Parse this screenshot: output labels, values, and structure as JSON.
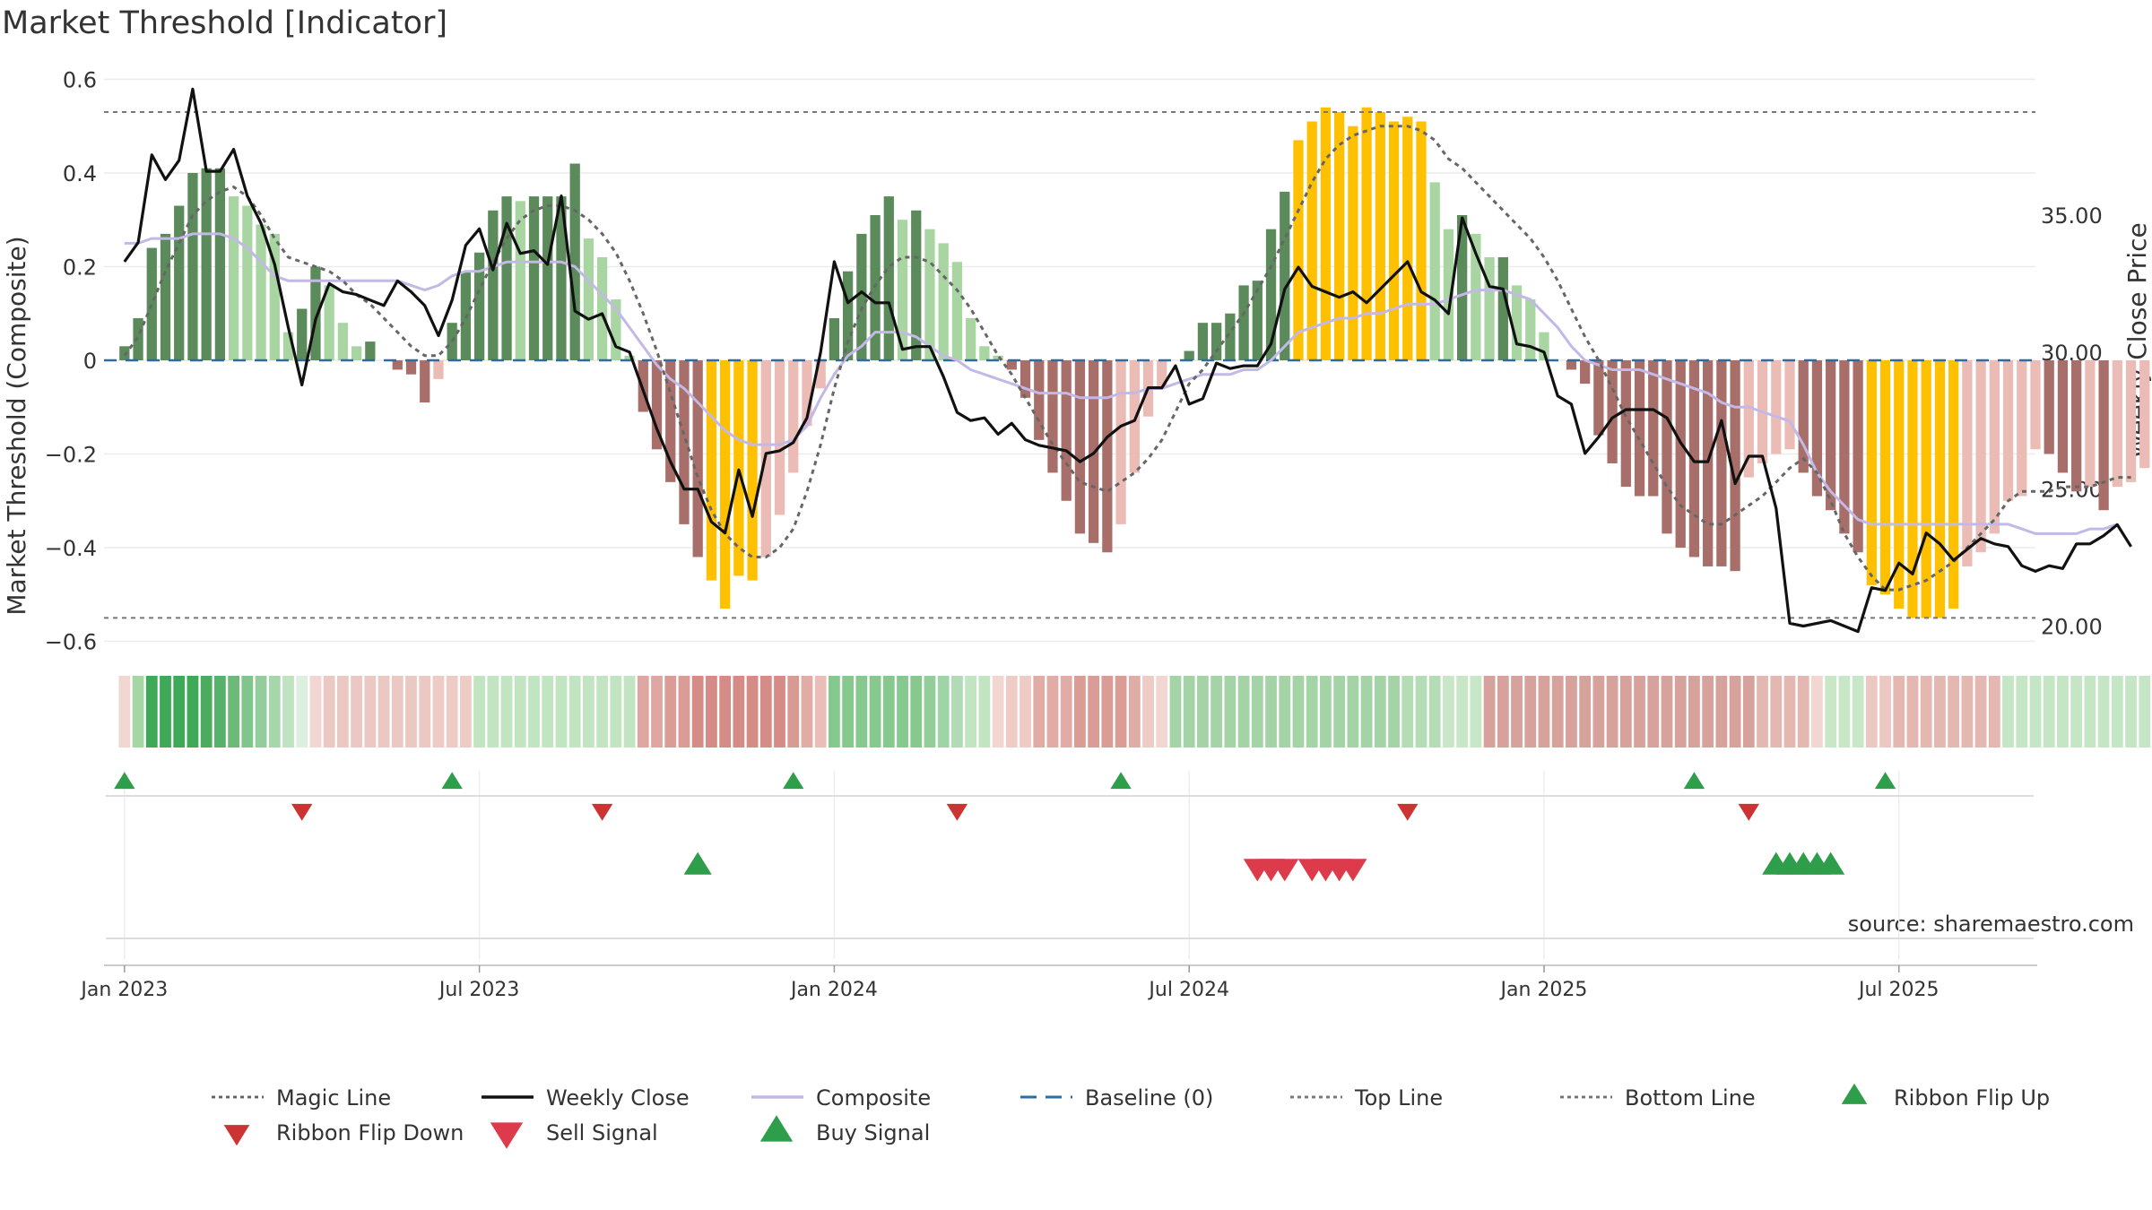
{
  "chart_data": {
    "type": "bar",
    "title": "Market Threshold [Indicator]",
    "ylabel": "Market Threshold (Composite)",
    "y2label": "Weekly Close Price",
    "source": "source: sharemaestro.com",
    "ylim": [
      -0.62,
      0.62
    ],
    "y_ticks": [
      0.6,
      0.4,
      0.2,
      0,
      -0.2,
      -0.4,
      -0.6
    ],
    "y_tick_labels": [
      "0.6",
      "0.4",
      "0.2",
      "0",
      "−0.2",
      "−0.4",
      "−0.6"
    ],
    "y2lim": [
      19.1,
      40.3
    ],
    "y2_ticks": [
      35.0,
      30.0,
      25.0,
      20.0
    ],
    "y2_tick_labels": [
      "35.00",
      "30.00",
      "25.00",
      "20.00"
    ],
    "x_ticks": [
      0,
      26,
      52,
      78,
      104,
      130
    ],
    "x_tick_labels": [
      "Jan 2023",
      "Jul 2023",
      "Jan 2024",
      "Jul 2024",
      "Jan 2025",
      "Jul 2025"
    ],
    "week_range": [
      -1.5,
      140
    ],
    "top_line": 0.53,
    "bottom_line": -0.55,
    "baseline": 0,
    "composite_bars": [
      0.03,
      0.09,
      0.24,
      0.27,
      0.33,
      0.4,
      0.41,
      0.41,
      0.35,
      0.33,
      0.29,
      0.27,
      0.06,
      0.11,
      0.2,
      0.16,
      0.08,
      0.03,
      0.04,
      0.0,
      -0.02,
      -0.03,
      -0.09,
      -0.04,
      0.08,
      0.19,
      0.23,
      0.32,
      0.35,
      0.34,
      0.35,
      0.35,
      0.35,
      0.42,
      0.26,
      0.22,
      0.13,
      0.01,
      -0.11,
      -0.19,
      -0.26,
      -0.35,
      -0.42,
      -0.47,
      -0.53,
      -0.46,
      -0.47,
      -0.42,
      -0.33,
      -0.24,
      -0.14,
      -0.06,
      0.09,
      0.19,
      0.27,
      0.31,
      0.35,
      0.3,
      0.32,
      0.28,
      0.25,
      0.21,
      0.09,
      0.03,
      0.01,
      -0.02,
      -0.08,
      -0.17,
      -0.24,
      -0.3,
      -0.37,
      -0.39,
      -0.41,
      -0.35,
      -0.24,
      -0.12,
      -0.06,
      0.0,
      0.02,
      0.08,
      0.08,
      0.1,
      0.16,
      0.17,
      0.28,
      0.36,
      0.47,
      0.51,
      0.54,
      0.53,
      0.5,
      0.54,
      0.53,
      0.51,
      0.52,
      0.51,
      0.38,
      0.28,
      0.31,
      0.27,
      0.22,
      0.22,
      0.16,
      0.13,
      0.06,
      0.0,
      -0.02,
      -0.05,
      -0.16,
      -0.22,
      -0.27,
      -0.29,
      -0.29,
      -0.37,
      -0.4,
      -0.42,
      -0.44,
      -0.44,
      -0.45,
      -0.25,
      -0.22,
      -0.2,
      -0.19,
      -0.24,
      -0.29,
      -0.32,
      -0.37,
      -0.41,
      -0.48,
      -0.5,
      -0.53,
      -0.55,
      -0.55,
      -0.55,
      -0.53,
      -0.44,
      -0.41,
      -0.37,
      -0.3,
      -0.29,
      -0.19,
      -0.2,
      -0.24,
      -0.28,
      -0.27,
      -0.32,
      -0.27,
      -0.26,
      -0.23,
      -0.22
    ],
    "bar_phase_colors": {
      "dark_green": "#5b8a5b",
      "light_green": "#a8d5a2",
      "dark_red": "#a86f6a",
      "light_red": "#ebbcb5",
      "extreme": "#ffc000"
    },
    "weekly_close": [
      33.3,
      34.0,
      37.2,
      36.3,
      37.0,
      39.6,
      36.6,
      36.6,
      37.4,
      35.7,
      34.7,
      33.2,
      30.9,
      28.8,
      31.2,
      32.5,
      32.2,
      32.1,
      31.9,
      31.7,
      32.6,
      32.2,
      31.7,
      30.6,
      31.9,
      33.9,
      34.5,
      33.0,
      34.7,
      33.6,
      33.7,
      33.2,
      35.7,
      31.5,
      31.2,
      31.4,
      30.2,
      30.0,
      28.6,
      27.2,
      26.0,
      25.0,
      25.0,
      23.8,
      23.4,
      25.7,
      24.0,
      26.3,
      26.4,
      26.7,
      27.6,
      30.0,
      33.3,
      31.8,
      32.2,
      31.8,
      31.8,
      30.1,
      30.2,
      30.2,
      29.1,
      27.8,
      27.5,
      27.6,
      27.0,
      27.4,
      26.8,
      26.6,
      26.5,
      26.4,
      26.0,
      26.3,
      26.9,
      27.3,
      27.5,
      28.7,
      28.7,
      29.5,
      28.1,
      28.3,
      29.6,
      29.4,
      29.5,
      29.5,
      30.3,
      32.3,
      33.1,
      32.4,
      32.2,
      32.0,
      32.2,
      31.8,
      32.3,
      32.8,
      33.3,
      32.2,
      31.9,
      31.4,
      34.9,
      33.6,
      32.4,
      32.3,
      30.3,
      30.2,
      30.0,
      28.4,
      28.1,
      26.3,
      26.9,
      27.6,
      27.9,
      27.9,
      27.9,
      27.6,
      26.7,
      26.0,
      26.0,
      27.5,
      25.2,
      26.2,
      26.2,
      24.3,
      20.1,
      20.0,
      20.1,
      20.2,
      20.0,
      19.8,
      21.4,
      21.3,
      22.3,
      21.9,
      23.4,
      23.0,
      22.4,
      22.8,
      23.2,
      23.0,
      22.9,
      22.2,
      22.0,
      22.2,
      22.1,
      23.0,
      23.0,
      23.3,
      23.7,
      22.9
    ],
    "magic_line": [
      0.01,
      0.05,
      0.12,
      0.19,
      0.25,
      0.31,
      0.34,
      0.36,
      0.37,
      0.35,
      0.31,
      0.26,
      0.22,
      0.21,
      0.2,
      0.19,
      0.17,
      0.14,
      0.12,
      0.09,
      0.06,
      0.03,
      0.01,
      0.01,
      0.04,
      0.09,
      0.15,
      0.21,
      0.26,
      0.3,
      0.32,
      0.33,
      0.33,
      0.32,
      0.3,
      0.27,
      0.23,
      0.17,
      0.1,
      0.02,
      -0.07,
      -0.16,
      -0.25,
      -0.32,
      -0.37,
      -0.4,
      -0.42,
      -0.42,
      -0.4,
      -0.36,
      -0.28,
      -0.18,
      -0.06,
      0.04,
      0.11,
      0.16,
      0.2,
      0.22,
      0.22,
      0.21,
      0.18,
      0.15,
      0.11,
      0.06,
      0.01,
      -0.03,
      -0.08,
      -0.13,
      -0.18,
      -0.22,
      -0.26,
      -0.27,
      -0.28,
      -0.26,
      -0.24,
      -0.21,
      -0.17,
      -0.11,
      -0.05,
      -0.02,
      0.02,
      0.06,
      0.1,
      0.15,
      0.2,
      0.26,
      0.32,
      0.38,
      0.43,
      0.46,
      0.48,
      0.49,
      0.5,
      0.5,
      0.5,
      0.49,
      0.47,
      0.43,
      0.41,
      0.38,
      0.35,
      0.32,
      0.29,
      0.26,
      0.22,
      0.17,
      0.11,
      0.05,
      0.0,
      -0.06,
      -0.12,
      -0.17,
      -0.22,
      -0.27,
      -0.31,
      -0.33,
      -0.35,
      -0.35,
      -0.33,
      -0.31,
      -0.29,
      -0.26,
      -0.23,
      -0.21,
      -0.24,
      -0.3,
      -0.37,
      -0.42,
      -0.46,
      -0.49,
      -0.49,
      -0.48,
      -0.47,
      -0.45,
      -0.43,
      -0.4,
      -0.37,
      -0.34,
      -0.3,
      -0.28,
      -0.28,
      -0.28,
      -0.27,
      -0.27,
      -0.27,
      -0.26,
      -0.25,
      -0.25
    ],
    "composite_line": [
      0.25,
      0.25,
      0.26,
      0.26,
      0.26,
      0.27,
      0.27,
      0.27,
      0.26,
      0.24,
      0.21,
      0.18,
      0.17,
      0.17,
      0.17,
      0.17,
      0.17,
      0.17,
      0.17,
      0.17,
      0.17,
      0.16,
      0.15,
      0.16,
      0.18,
      0.19,
      0.19,
      0.2,
      0.21,
      0.21,
      0.21,
      0.21,
      0.21,
      0.2,
      0.17,
      0.14,
      0.11,
      0.07,
      0.03,
      -0.01,
      -0.04,
      -0.06,
      -0.09,
      -0.12,
      -0.15,
      -0.17,
      -0.18,
      -0.18,
      -0.18,
      -0.17,
      -0.14,
      -0.08,
      -0.03,
      0.01,
      0.03,
      0.06,
      0.06,
      0.06,
      0.05,
      0.03,
      0.01,
      0.0,
      -0.02,
      -0.03,
      -0.04,
      -0.05,
      -0.06,
      -0.07,
      -0.07,
      -0.07,
      -0.08,
      -0.08,
      -0.08,
      -0.07,
      -0.07,
      -0.06,
      -0.06,
      -0.05,
      -0.04,
      -0.03,
      -0.03,
      -0.03,
      -0.02,
      -0.02,
      0.0,
      0.03,
      0.06,
      0.07,
      0.08,
      0.09,
      0.09,
      0.1,
      0.1,
      0.11,
      0.12,
      0.12,
      0.12,
      0.13,
      0.14,
      0.15,
      0.15,
      0.15,
      0.14,
      0.13,
      0.1,
      0.07,
      0.03,
      0.0,
      -0.01,
      -0.02,
      -0.02,
      -0.02,
      -0.03,
      -0.04,
      -0.05,
      -0.06,
      -0.07,
      -0.09,
      -0.1,
      -0.1,
      -0.11,
      -0.12,
      -0.13,
      -0.18,
      -0.24,
      -0.28,
      -0.31,
      -0.34,
      -0.35,
      -0.35,
      -0.35,
      -0.35,
      -0.35,
      -0.35,
      -0.35,
      -0.35,
      -0.35,
      -0.35,
      -0.35,
      -0.36,
      -0.37,
      -0.37,
      -0.37,
      -0.37,
      -0.36,
      -0.36,
      -0.35
    ],
    "ribbon": [
      "#f2d6d2",
      "#a7d6a5",
      "#40a957",
      "#40a957",
      "#40a957",
      "#40a957",
      "#4bac5d",
      "#56b26a",
      "#6cba78",
      "#80c58c",
      "#93cd9b",
      "#a6d7ab",
      "#bfe2c1",
      "#ddefde",
      "#f2d6d2",
      "#ecc8c2",
      "#ecc8c2",
      "#ecc8c2",
      "#ecc8c2",
      "#ecc8c2",
      "#ecc8c2",
      "#ecc8c2",
      "#ecc8c2",
      "#eecbc5",
      "#eecbc5",
      "#eecbc5",
      "#c1e5c0",
      "#c1e5c0",
      "#c1e5c0",
      "#c1e5c0",
      "#c1e5c0",
      "#c1e5c0",
      "#c1e5c0",
      "#c1e5c0",
      "#c1e5c0",
      "#c1e5c0",
      "#c1e5c0",
      "#c1e5c0",
      "#e0a7a2",
      "#e0a7a2",
      "#dc9c96",
      "#dc9c96",
      "#d68c86",
      "#d68c86",
      "#d68c86",
      "#d68c86",
      "#d68c86",
      "#d68c86",
      "#d68c86",
      "#da9a94",
      "#e2aca6",
      "#ebbdb8",
      "#86c98e",
      "#86c98e",
      "#86c98e",
      "#86c98e",
      "#86c98e",
      "#86c98e",
      "#86c98e",
      "#92ce99",
      "#9fd4a6",
      "#b1dbb6",
      "#c1e5c0",
      "#c1e5c0",
      "#f2d6d2",
      "#eecbc5",
      "#eecbc5",
      "#e2aca6",
      "#e2aca6",
      "#e2aca6",
      "#dc9c96",
      "#dc9c96",
      "#dc9c96",
      "#dc9c96",
      "#e2aca6",
      "#eecbc5",
      "#f2d6d2",
      "#a4d4a6",
      "#a4d4a6",
      "#a4d4a6",
      "#a4d4a6",
      "#a4d4a6",
      "#a4d4a6",
      "#a4d4a6",
      "#a4d4a6",
      "#a4d4a6",
      "#a4d4a6",
      "#a4d4a6",
      "#a4d4a6",
      "#a4d4a6",
      "#a4d4a6",
      "#a4d4a6",
      "#a4d4a6",
      "#a4d4a6",
      "#b4ddb5",
      "#b4ddb5",
      "#b4ddb5",
      "#c7e7c7",
      "#c7e7c7",
      "#c7e7c7",
      "#d6a29b",
      "#d6a29b",
      "#d6a29b",
      "#d6a29b",
      "#d6a29b",
      "#d6a29b",
      "#d6a29b",
      "#d6a29b",
      "#d6a29b",
      "#d6a29b",
      "#d6a29b",
      "#d6a29b",
      "#d6a29b",
      "#d6a29b",
      "#d6a29b",
      "#d6a29b",
      "#d6a29b",
      "#d6a29b",
      "#d6a29b",
      "#d6a29b",
      "#e4b7b1",
      "#e4b7b1",
      "#e4b7b1",
      "#e4b7b1",
      "#f2d6d2",
      "#c7e7c7",
      "#c7e7c7",
      "#c7e7c7",
      "#ecc8c2",
      "#ecc8c2",
      "#e4b7b1",
      "#e4b7b1",
      "#e4b7b1",
      "#e4b7b1",
      "#e4b7b1",
      "#e4b7b1",
      "#e4b7b1",
      "#e4b7b1",
      "#c5e6c5",
      "#c5e6c5",
      "#c5e6c5",
      "#c5e6c5",
      "#c5e6c5",
      "#c5e6c5",
      "#c5e6c5",
      "#c5e6c5",
      "#c5e6c5",
      "#c5e6c5",
      "#c5e6c5",
      "#c5e6c5",
      "#c5e6c5"
    ],
    "ribbon_flip_up_weeks": [
      0,
      24,
      49,
      73,
      115,
      129
    ],
    "ribbon_flip_down_weeks": [
      13,
      35,
      61,
      94,
      119
    ],
    "buy_signal_weeks": [
      42,
      121,
      122,
      123,
      124,
      125
    ],
    "sell_signal_weeks": [
      83,
      84,
      85,
      87,
      88,
      89,
      90
    ],
    "legend": [
      "Magic Line",
      "Weekly Close",
      "Composite",
      "Baseline (0)",
      "Top Line",
      "Bottom Line",
      "Ribbon Flip Up",
      "Ribbon Flip Down",
      "Sell Signal",
      "Buy Signal"
    ],
    "colors": {
      "weekly_close": "#111111",
      "magic_line": "#666666",
      "composite": "#c3b8e6",
      "baseline": "#2e6b9e",
      "ref_lines": "#777777",
      "flip_up": "#2e9e4a",
      "flip_down": "#cc3333",
      "sell": "#dd3b4c",
      "buy": "#2e9e4a",
      "source": "#888888"
    }
  }
}
